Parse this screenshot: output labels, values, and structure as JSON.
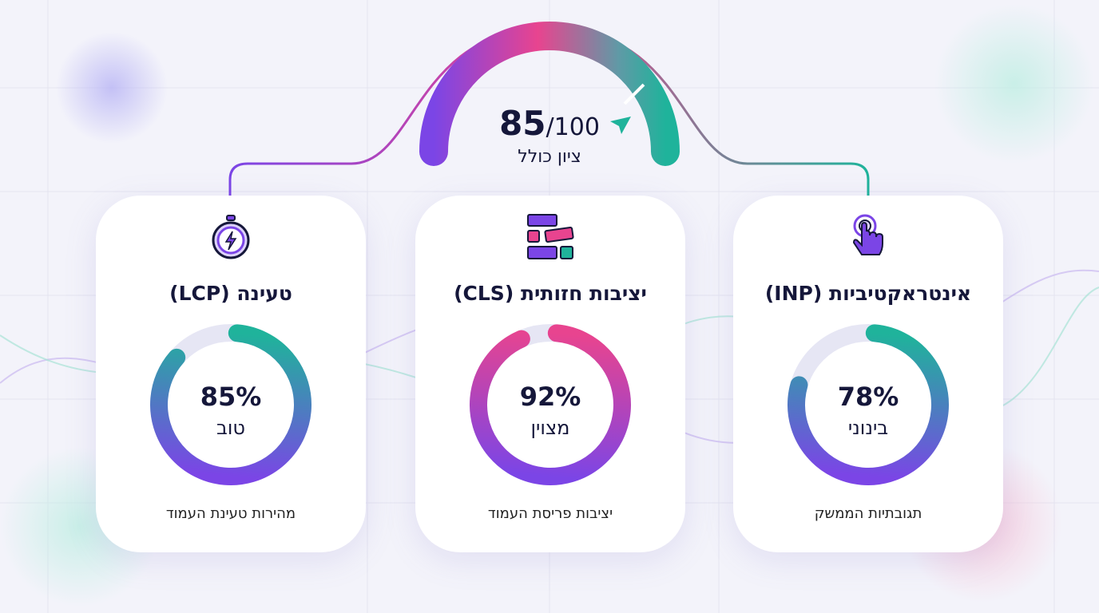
{
  "overall": {
    "score": "85",
    "max": "/100",
    "label": "ציון כולל",
    "value": 85
  },
  "colors": {
    "purple": "#7b45e6",
    "pink": "#e8448f",
    "teal": "#1fb39b",
    "text": "#15173a"
  },
  "cards": [
    {
      "title": "טעינה (LCP)",
      "percent": "85%",
      "value": 85,
      "rating": "טוב",
      "description": "מהירות טעינת העמוד",
      "icon": "stopwatch-lightning-icon",
      "gradient": [
        "#7b45e6",
        "#1fb39b"
      ]
    },
    {
      "title": "יציבות חזותית (CLS)",
      "percent": "92%",
      "value": 92,
      "rating": "מצוין",
      "description": "יציבות פריסת העמוד",
      "icon": "layout-blocks-icon",
      "gradient": [
        "#7b45e6",
        "#e8448f"
      ]
    },
    {
      "title": "אינטראקטיביות (INP)",
      "percent": "78%",
      "value": 78,
      "rating": "בינוני",
      "description": "תגובתיות הממשק",
      "icon": "pointer-hand-icon",
      "gradient": [
        "#7b45e6",
        "#1fb39b"
      ]
    }
  ]
}
